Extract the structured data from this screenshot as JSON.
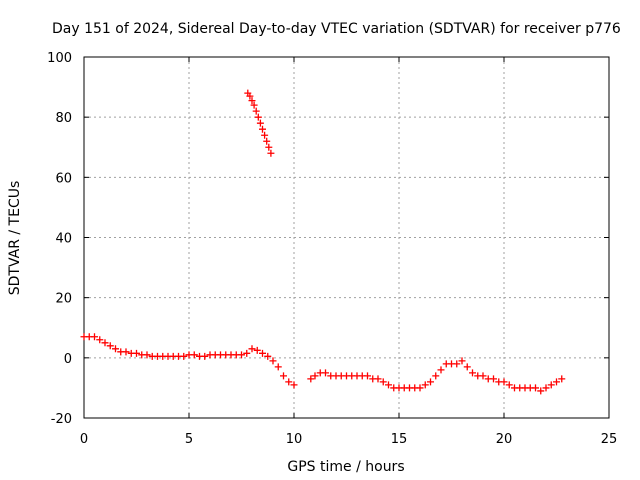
{
  "chart_data": {
    "type": "scatter",
    "title": "Day 151 of 2024, Sidereal Day-to-day VTEC variation (SDTVAR) for receiver p776",
    "xlabel": "GPS time / hours",
    "ylabel": "SDTVAR / TECUs",
    "xlim": [
      0,
      25
    ],
    "ylim": [
      -20,
      100
    ],
    "xticks": [
      0,
      5,
      10,
      15,
      20,
      25
    ],
    "yticks": [
      -20,
      0,
      20,
      40,
      60,
      80,
      100
    ],
    "xtick_labels": [
      "0",
      "5",
      "10",
      "15",
      "20",
      "25"
    ],
    "ytick_labels": [
      "-20",
      "0",
      "20",
      "40",
      "60",
      "80",
      "100"
    ],
    "grid": true,
    "marker": "plus",
    "color": "#ff0000",
    "series": [
      {
        "name": "main",
        "x": [
          0.0,
          0.25,
          0.5,
          0.75,
          1.0,
          1.25,
          1.5,
          1.75,
          2.0,
          2.25,
          2.5,
          2.75,
          3.0,
          3.25,
          3.5,
          3.75,
          4.0,
          4.25,
          4.5,
          4.75,
          5.0,
          5.25,
          5.5,
          5.75,
          6.0,
          6.25,
          6.5,
          6.75,
          7.0,
          7.25,
          7.5,
          7.75,
          8.0,
          8.25,
          8.5,
          8.75,
          9.0,
          9.25,
          9.5,
          9.75,
          10.0
        ],
        "y": [
          7,
          7,
          7,
          6,
          5,
          4,
          3,
          2,
          2,
          1.5,
          1.5,
          1,
          1,
          0.5,
          0.5,
          0.5,
          0.5,
          0.5,
          0.5,
          0.5,
          1,
          1,
          0.5,
          0.5,
          1,
          1,
          1,
          1,
          1,
          1,
          1,
          1.5,
          3,
          2.5,
          1.5,
          0.5,
          -1,
          -3,
          -6,
          -8,
          -9
        ]
      },
      {
        "name": "arc",
        "x": [
          7.8,
          7.9,
          8.0,
          8.1,
          8.2,
          8.3,
          8.4,
          8.5,
          8.6,
          8.7,
          8.8,
          8.9
        ],
        "y": [
          88,
          87,
          85.5,
          84,
          82,
          80,
          78,
          76,
          74,
          72,
          70,
          68
        ]
      },
      {
        "name": "later",
        "x": [
          10.8,
          11.0,
          11.25,
          11.5,
          11.75,
          12.0,
          12.25,
          12.5,
          12.75,
          13.0,
          13.25,
          13.5,
          13.75,
          14.0,
          14.25,
          14.5,
          14.75,
          15.0,
          15.25,
          15.5,
          15.75,
          16.0,
          16.25,
          16.5,
          16.75,
          17.0,
          17.25,
          17.5,
          17.75,
          18.0,
          18.25,
          18.5,
          18.75,
          19.0,
          19.25,
          19.5,
          19.75,
          20.0,
          20.25,
          20.5,
          20.75,
          21.0,
          21.25,
          21.5,
          21.75,
          22.0,
          22.25,
          22.5,
          22.75
        ],
        "y": [
          -7,
          -6,
          -5,
          -5,
          -6,
          -6,
          -6,
          -6,
          -6,
          -6,
          -6,
          -6,
          -7,
          -7,
          -8,
          -9,
          -10,
          -10,
          -10,
          -10,
          -10,
          -10,
          -9,
          -8,
          -6,
          -4,
          -2,
          -2,
          -2,
          -1,
          -3,
          -5,
          -6,
          -6,
          -7,
          -7,
          -8,
          -8,
          -9,
          -10,
          -10,
          -10,
          -10,
          -10,
          -11,
          -10,
          -9,
          -8,
          -7
        ]
      }
    ]
  }
}
